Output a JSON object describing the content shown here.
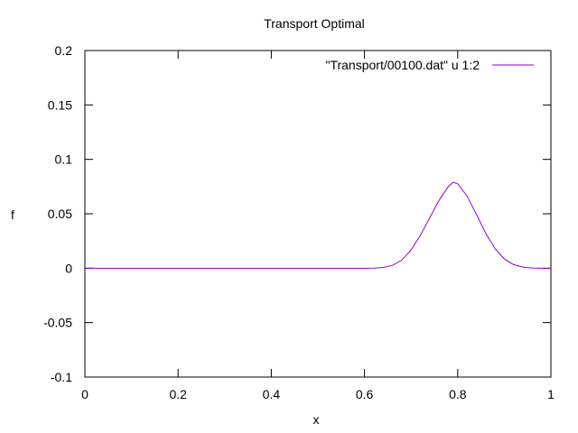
{
  "chart_data": {
    "type": "line",
    "title": "Transport Optimal",
    "xlabel": "x",
    "ylabel": "f",
    "xlim": [
      0,
      1
    ],
    "ylim": [
      -0.1,
      0.2
    ],
    "xticks": [
      0,
      0.2,
      0.4,
      0.6,
      0.8,
      1
    ],
    "xtick_labels": [
      "0",
      "0.2",
      "0.4",
      "0.6",
      "0.8",
      "1"
    ],
    "yticks": [
      -0.1,
      -0.05,
      0,
      0.05,
      0.1,
      0.15,
      0.2
    ],
    "ytick_labels": [
      "-0.1",
      "-0.05",
      "0",
      "0.05",
      "0.1",
      "0.15",
      "0.2"
    ],
    "grid": false,
    "legend_position": "top-right",
    "series": [
      {
        "name": "\"Transport/00100.dat\" u 1:2",
        "color": "#9400d3",
        "x": [
          0,
          0.1,
          0.2,
          0.3,
          0.4,
          0.5,
          0.6,
          0.62,
          0.64,
          0.66,
          0.68,
          0.7,
          0.72,
          0.74,
          0.76,
          0.78,
          0.79,
          0.8,
          0.82,
          0.84,
          0.86,
          0.88,
          0.9,
          0.92,
          0.94,
          0.96,
          0.98,
          1.0
        ],
        "y": [
          0,
          0,
          0,
          0,
          0,
          0,
          0,
          0.0001,
          0.0007,
          0.0026,
          0.0075,
          0.0168,
          0.0303,
          0.0464,
          0.0624,
          0.0751,
          0.079,
          0.0776,
          0.0663,
          0.0496,
          0.0322,
          0.018,
          0.0085,
          0.0033,
          0.001,
          0.0002,
          0,
          0
        ]
      }
    ]
  }
}
